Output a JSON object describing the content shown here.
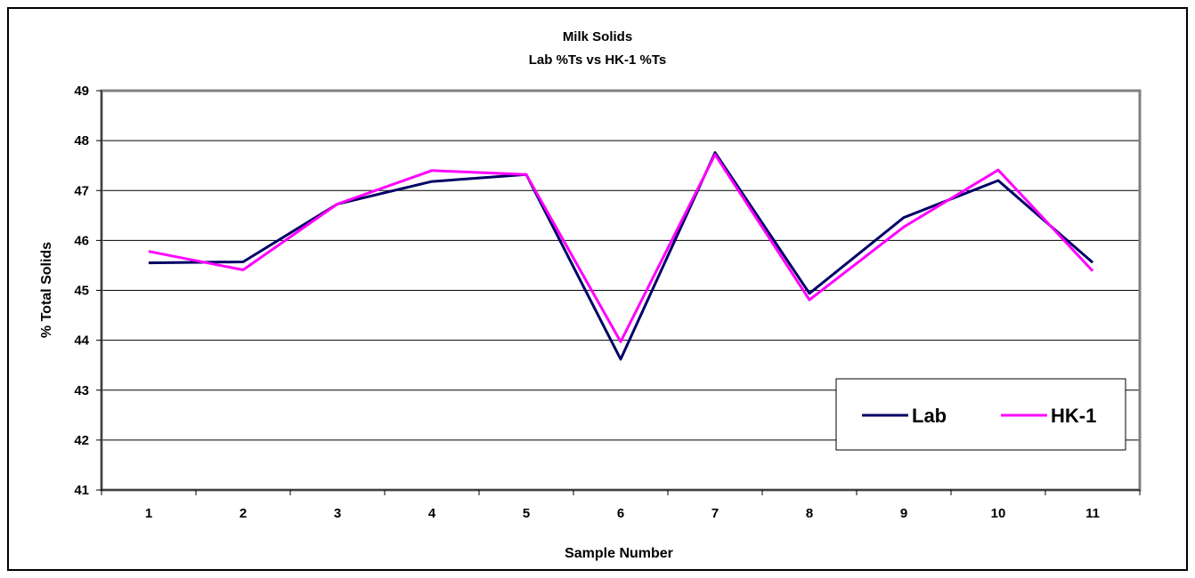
{
  "chart_data": {
    "type": "line",
    "title": "Milk Solids",
    "subtitle": "Lab %Ts vs HK-1 %Ts",
    "xlabel": "Sample Number",
    "ylabel": "% Total Solids",
    "categories": [
      "1",
      "2",
      "3",
      "4",
      "5",
      "6",
      "7",
      "8",
      "9",
      "10",
      "11"
    ],
    "ylim": [
      41,
      49
    ],
    "yticks": [
      "41",
      "42",
      "43",
      "44",
      "45",
      "46",
      "47",
      "48",
      "49"
    ],
    "grid": true,
    "legend_position": "bottom-right",
    "series": [
      {
        "name": "Lab",
        "color": "#000066",
        "values": [
          45.55,
          45.57,
          46.73,
          47.18,
          47.32,
          43.62,
          47.76,
          44.94,
          46.46,
          47.2,
          45.56
        ]
      },
      {
        "name": "HK-1",
        "color": "#ff00ff",
        "values": [
          45.78,
          45.41,
          46.73,
          47.4,
          47.32,
          43.97,
          47.72,
          44.81,
          46.27,
          47.41,
          45.39
        ]
      }
    ]
  }
}
